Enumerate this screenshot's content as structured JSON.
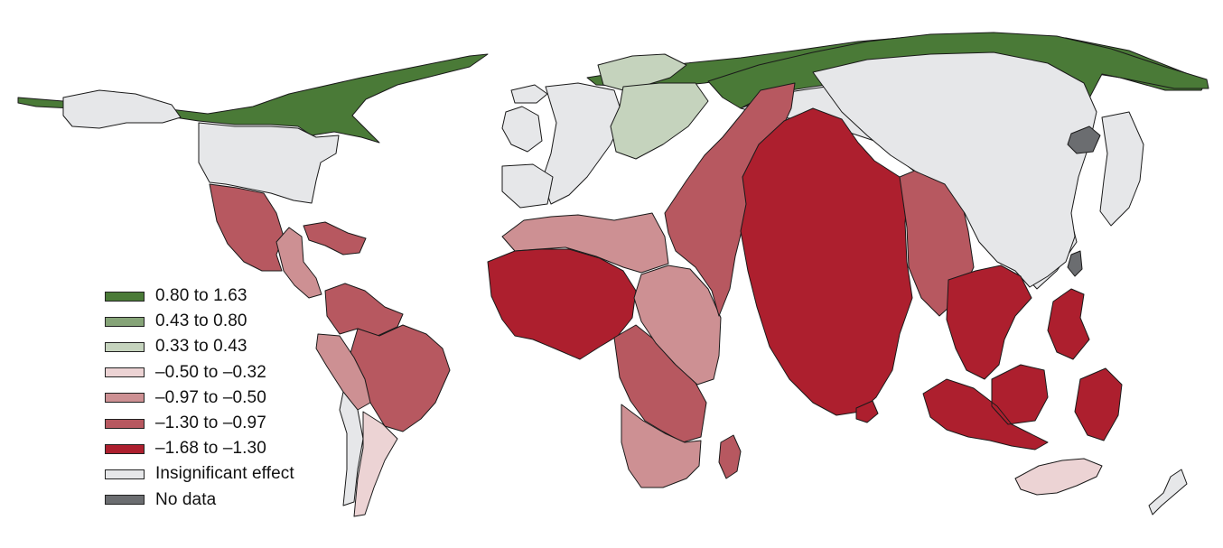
{
  "map": {
    "legend": [
      {
        "label": "0.80 to 1.63",
        "color": "#4a7a37"
      },
      {
        "label": "0.43 to 0.80",
        "color": "#86a478"
      },
      {
        "label": "0.33 to 0.43",
        "color": "#c5d3bd"
      },
      {
        "label": "–0.50 to –0.32",
        "color": "#ecd3d4"
      },
      {
        "label": "–0.97 to –0.50",
        "color": "#cd9093"
      },
      {
        "label": "–1.30 to –0.97",
        "color": "#b75860"
      },
      {
        "label": "–1.68 to –1.30",
        "color": "#ad1f2e"
      },
      {
        "label": "Insignificant effect",
        "color": "#e6e7e9"
      },
      {
        "label": "No data",
        "color": "#6b6d70"
      }
    ],
    "regions": [
      {
        "name": "arctic-canada",
        "class": 0
      },
      {
        "name": "alaska",
        "class": 7
      },
      {
        "name": "north-america",
        "class": 7
      },
      {
        "name": "mexico",
        "class": 5
      },
      {
        "name": "central-america",
        "class": 4
      },
      {
        "name": "caribbean",
        "class": 5
      },
      {
        "name": "colombia-venezuela",
        "class": 5
      },
      {
        "name": "brazil",
        "class": 5
      },
      {
        "name": "peru",
        "class": 4
      },
      {
        "name": "chile",
        "class": 7
      },
      {
        "name": "argentina",
        "class": 3
      },
      {
        "name": "greenland-north-coast",
        "class": 0
      },
      {
        "name": "iceland",
        "class": 7
      },
      {
        "name": "uk-ireland",
        "class": 7
      },
      {
        "name": "western-europe",
        "class": 7
      },
      {
        "name": "scandinavia",
        "class": 2
      },
      {
        "name": "eastern-europe",
        "class": 2
      },
      {
        "name": "iberia",
        "class": 7
      },
      {
        "name": "russia-arctic-coast",
        "class": 0
      },
      {
        "name": "russia",
        "class": 7
      },
      {
        "name": "north-africa",
        "class": 4
      },
      {
        "name": "west-africa",
        "class": 6
      },
      {
        "name": "central-africa",
        "class": 5
      },
      {
        "name": "east-africa",
        "class": 4
      },
      {
        "name": "southern-africa",
        "class": 4
      },
      {
        "name": "madagascar",
        "class": 5
      },
      {
        "name": "middle-east",
        "class": 5
      },
      {
        "name": "india",
        "class": 6
      },
      {
        "name": "pakistan",
        "class": 5
      },
      {
        "name": "sri-lanka",
        "class": 6
      },
      {
        "name": "china",
        "class": 7
      },
      {
        "name": "north-korea",
        "class": 8
      },
      {
        "name": "taiwan",
        "class": 8
      },
      {
        "name": "japan",
        "class": 7
      },
      {
        "name": "southeast-asia",
        "class": 6
      },
      {
        "name": "philippines",
        "class": 6
      },
      {
        "name": "indonesia",
        "class": 6
      },
      {
        "name": "australia",
        "class": 3
      },
      {
        "name": "new-zealand",
        "class": 7
      }
    ]
  }
}
